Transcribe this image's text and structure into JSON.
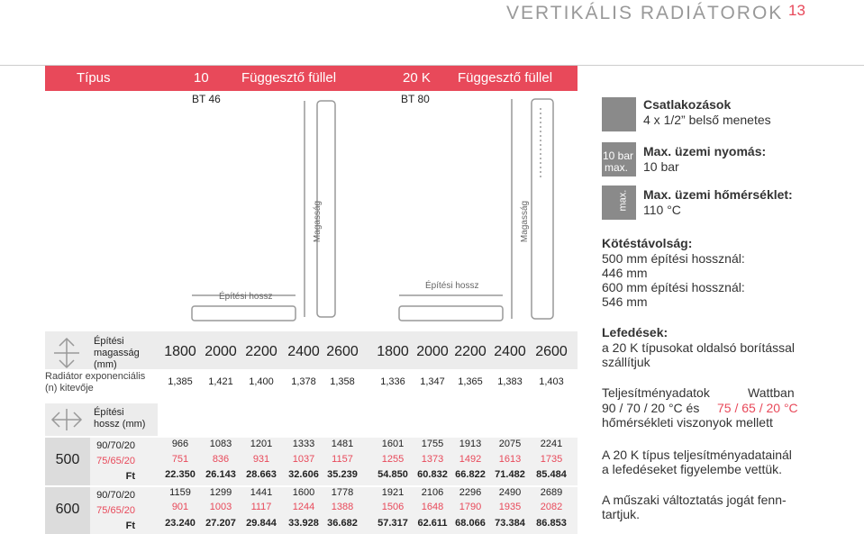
{
  "header": {
    "title": "VERTIKÁLIS RADIÁTOROK",
    "page": "13"
  },
  "table": {
    "type_label": "Típus",
    "row_labels": {
      "height": "Építési magasság (mm)",
      "exponent": "Radiátor exponenciális (n) kitevője",
      "length": "Építési hossz (mm)"
    },
    "sections": [
      {
        "length": "500",
        "rows": [
          "90/70/20",
          "75/65/20",
          "Ft"
        ]
      },
      {
        "length": "600",
        "rows": [
          "90/70/20",
          "75/65/20",
          "Ft"
        ]
      }
    ],
    "groups": [
      {
        "code": "10",
        "name": "Függesztő füllel",
        "model": "BT 46",
        "height_label": "Magasság",
        "length_label": "Építési hossz",
        "heights": [
          1800,
          2000,
          2200,
          2400,
          2600
        ],
        "exponents": [
          "1,385",
          "1,421",
          "1,400",
          "1,378",
          "1,358"
        ],
        "rows": [
          [
            966,
            1083,
            1201,
            1333,
            1481
          ],
          [
            751,
            836,
            931,
            1037,
            1157
          ],
          [
            "22.350",
            "26.143",
            "28.663",
            "32.606",
            "35.239"
          ],
          [
            1159,
            1299,
            1441,
            1600,
            1778
          ],
          [
            901,
            1003,
            1117,
            1244,
            1388
          ],
          [
            "23.240",
            "27.207",
            "29.844",
            "33.928",
            "36.682"
          ]
        ]
      },
      {
        "code": "20 K",
        "name": "Függesztő füllel",
        "model": "BT 80",
        "height_label": "Magasság",
        "length_label": "Építési hossz",
        "heights": [
          1800,
          2000,
          2200,
          2400,
          2600
        ],
        "exponents": [
          "1,336",
          "1,347",
          "1,365",
          "1,383",
          "1,403"
        ],
        "rows": [
          [
            1601,
            1755,
            1913,
            2075,
            2241
          ],
          [
            1255,
            1373,
            1492,
            1613,
            1735
          ],
          [
            "54.850",
            "60.832",
            "66.822",
            "71.482",
            "85.484"
          ],
          [
            1921,
            2106,
            2296,
            2490,
            2689
          ],
          [
            1506,
            1648,
            1790,
            1935,
            2082
          ],
          [
            "57.317",
            "62.611",
            "68.066",
            "73.384",
            "86.853"
          ]
        ]
      }
    ]
  },
  "info": {
    "connections": {
      "title": "Csatlakozások",
      "text": "4 x 1/2” belső menetes"
    },
    "pressure": {
      "icon": [
        "10 bar",
        "max."
      ],
      "title": "Max. üzemi nyomás:",
      "text": "10 bar"
    },
    "temperature": {
      "icon": "max.",
      "title": "Max. üzemi hőmérséklet:",
      "text": "110 °C"
    },
    "distance": {
      "title": "Kötéstávolság:",
      "lines": [
        "500 mm építési hossznál:",
        "446 mm",
        "600 mm építési hossznál:",
        "546 mm"
      ]
    },
    "covers": {
      "title": "Lefedések:",
      "text": [
        "a 20 K típusokat oldalsó borítással",
        "szállítjuk"
      ]
    },
    "performance": {
      "title": "Teljesítményadatok",
      "unit": "Wattban",
      "text_before": "90 / 70 / 20 °C és",
      "highlight": "75 / 65 / 20 °C",
      "text_after": "hőmérsékleti viszonyok mellett"
    },
    "notes": [
      [
        "A 20 K típus teljesítményadatainál",
        "a lefedéseket figyelembe vettük."
      ],
      [
        "A műszaki változtatás jogát fenn-",
        "tartjuk."
      ]
    ]
  }
}
